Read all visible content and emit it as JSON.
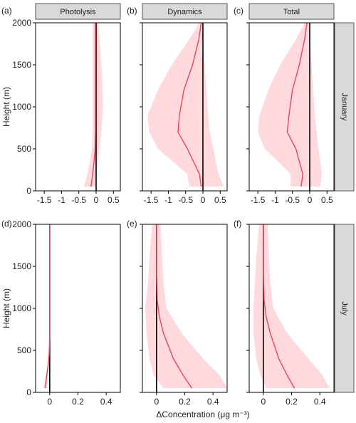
{
  "figure": {
    "ylabel": "Height (m)",
    "xlabel": "ΔConcentration (μg m⁻³)",
    "column_titles": [
      "Photolysis",
      "Dynamics",
      "Total"
    ],
    "row_titles": [
      "January",
      "July"
    ],
    "panel_labels": [
      "(a)",
      "(b)",
      "(c)",
      "(d)",
      "(e)",
      "(f)"
    ]
  },
  "colors": {
    "mean_line": "#e8475b",
    "band_fill": "#ffd9dd",
    "zero_line": "#000000",
    "strip_fill": "#d9d9d9",
    "frame": "#000000"
  },
  "chart_data": [
    {
      "type": "area",
      "panel": "(a)",
      "column": "Photolysis",
      "row": "January",
      "xlim": [
        -1.75,
        0.7
      ],
      "ylim": [
        0,
        2000
      ],
      "xticks": [
        -1.5,
        -1,
        -0.5,
        0,
        0.5
      ],
      "xticklabels": [
        "-1.5",
        "-1",
        "-0.5",
        "0",
        "0.5"
      ],
      "yticks": [
        0,
        500,
        1000,
        1500,
        2000
      ],
      "yticklabels": [
        "0",
        "500",
        "1000",
        "1500",
        "2000"
      ],
      "zero_line": 0,
      "series": [
        {
          "name": "",
          "kind": "band",
          "y": [
            50,
            200,
            350,
            500,
            700,
            1000,
            1300,
            1700,
            2000
          ],
          "lower": [
            -0.35,
            -0.25,
            -0.18,
            -0.12,
            -0.1,
            -0.1,
            -0.1,
            -0.1,
            -0.1
          ],
          "upper": [
            -0.02,
            0.0,
            0.05,
            0.1,
            0.15,
            0.2,
            0.18,
            0.12,
            0.05
          ]
        },
        {
          "name": "",
          "kind": "mean",
          "y": [
            50,
            200,
            350,
            500,
            700,
            1000,
            1300,
            1700,
            2000
          ],
          "x": [
            -0.15,
            -0.1,
            -0.06,
            -0.03,
            -0.02,
            -0.02,
            -0.02,
            -0.02,
            -0.02
          ]
        }
      ]
    },
    {
      "type": "area",
      "panel": "(b)",
      "column": "Dynamics",
      "row": "January",
      "xlim": [
        -1.75,
        0.7
      ],
      "ylim": [
        0,
        2000
      ],
      "xticks": [
        -1.5,
        -1,
        -0.5,
        0,
        0.5
      ],
      "xticklabels": [
        "-1.5",
        "-1",
        "-0.5",
        "0",
        "0.5"
      ],
      "yticks": [
        0,
        500,
        1000,
        1500,
        2000
      ],
      "yticklabels": [
        "",
        "",
        "",
        "",
        ""
      ],
      "zero_line": 0,
      "series": [
        {
          "name": "",
          "kind": "band",
          "y": [
            50,
            200,
            500,
            700,
            900,
            1200,
            1500,
            1800,
            2000
          ],
          "lower": [
            -0.4,
            -0.45,
            -1.3,
            -1.55,
            -1.6,
            -1.3,
            -0.9,
            -0.4,
            -0.1
          ],
          "upper": [
            0.6,
            0.45,
            0.3,
            0.2,
            0.15,
            0.1,
            0.05,
            0.0,
            0.0
          ]
        },
        {
          "name": "",
          "kind": "mean",
          "y": [
            50,
            200,
            500,
            700,
            900,
            1200,
            1500,
            1800,
            2000
          ],
          "x": [
            -0.05,
            -0.1,
            -0.45,
            -0.72,
            -0.68,
            -0.55,
            -0.3,
            -0.12,
            -0.05
          ]
        }
      ]
    },
    {
      "type": "area",
      "panel": "(c)",
      "column": "Total",
      "row": "January",
      "xlim": [
        -1.75,
        0.7
      ],
      "ylim": [
        0,
        2000
      ],
      "xticks": [
        -1.5,
        -1,
        -0.5,
        0,
        0.5
      ],
      "xticklabels": [
        "-1.5",
        "-1",
        "-0.5",
        "0",
        "0.5"
      ],
      "yticks": [
        0,
        500,
        1000,
        1500,
        2000
      ],
      "yticklabels": [
        "",
        "",
        "",
        "",
        ""
      ],
      "zero_line": 0,
      "series": [
        {
          "name": "",
          "kind": "band",
          "y": [
            50,
            200,
            500,
            700,
            900,
            1200,
            1500,
            1800,
            2000
          ],
          "lower": [
            -0.55,
            -0.55,
            -1.3,
            -1.5,
            -1.45,
            -1.2,
            -0.85,
            -0.4,
            -0.15
          ],
          "upper": [
            0.3,
            0.35,
            0.25,
            0.2,
            0.15,
            0.1,
            0.05,
            0.0,
            0.0
          ]
        },
        {
          "name": "",
          "kind": "mean",
          "y": [
            50,
            200,
            500,
            700,
            900,
            1200,
            1500,
            1800,
            2000
          ],
          "x": [
            -0.25,
            -0.2,
            -0.4,
            -0.65,
            -0.6,
            -0.5,
            -0.3,
            -0.15,
            -0.08
          ]
        }
      ]
    },
    {
      "type": "area",
      "panel": "(d)",
      "column": "Photolysis",
      "row": "July",
      "xlim": [
        -0.1,
        0.5
      ],
      "ylim": [
        0,
        2000
      ],
      "xticks": [
        0,
        0.2,
        0.4
      ],
      "xticklabels": [
        "0",
        "0.2",
        "0.4"
      ],
      "yticks": [
        0,
        500,
        1000,
        1500,
        2000
      ],
      "yticklabels": [
        "0",
        "500",
        "1000",
        "1500",
        "2000"
      ],
      "zero_line": 0,
      "series": [
        {
          "name": "",
          "kind": "band",
          "y": [
            50,
            150,
            300,
            450,
            700,
            1000,
            1500,
            2000
          ],
          "lower": [
            -0.045,
            -0.035,
            -0.02,
            -0.008,
            0,
            0,
            0,
            0
          ],
          "upper": [
            -0.02,
            -0.015,
            -0.006,
            0,
            0,
            0,
            0,
            0
          ]
        },
        {
          "name": "",
          "kind": "mean",
          "y": [
            50,
            150,
            300,
            450,
            700,
            1000,
            1500,
            2000
          ],
          "x": [
            -0.033,
            -0.025,
            -0.013,
            -0.004,
            0,
            0,
            0,
            0
          ]
        }
      ]
    },
    {
      "type": "area",
      "panel": "(e)",
      "column": "Dynamics",
      "row": "July",
      "xlim": [
        -0.1,
        0.5
      ],
      "ylim": [
        0,
        2000
      ],
      "xticks": [
        0,
        0.2,
        0.4
      ],
      "xticklabels": [
        "0",
        "0.2",
        "0.4"
      ],
      "yticks": [
        0,
        500,
        1000,
        1500,
        2000
      ],
      "yticklabels": [
        "",
        "",
        "",
        "",
        ""
      ],
      "zero_line": 0,
      "series": [
        {
          "name": "",
          "kind": "band",
          "y": [
            50,
            200,
            400,
            700,
            1000,
            1300,
            1600,
            2000
          ],
          "lower": [
            0.05,
            -0.02,
            -0.05,
            -0.07,
            -0.08,
            -0.06,
            -0.05,
            -0.03
          ],
          "upper": [
            0.5,
            0.45,
            0.33,
            0.18,
            0.07,
            0.05,
            0.04,
            0.03
          ]
        },
        {
          "name": "",
          "kind": "mean",
          "y": [
            50,
            200,
            400,
            700,
            900,
            1100,
            1400,
            2000
          ],
          "x": [
            0.25,
            0.19,
            0.12,
            0.05,
            0.02,
            0.005,
            0,
            0
          ]
        }
      ]
    },
    {
      "type": "area",
      "panel": "(f)",
      "column": "Total",
      "row": "July",
      "xlim": [
        -0.1,
        0.5
      ],
      "ylim": [
        0,
        2000
      ],
      "xticks": [
        0,
        0.2,
        0.4
      ],
      "xticklabels": [
        "0",
        "0.2",
        "0.4"
      ],
      "yticks": [
        0,
        500,
        1000,
        1500,
        2000
      ],
      "yticklabels": [
        "",
        "",
        "",
        "",
        ""
      ],
      "zero_line": 0,
      "series": [
        {
          "name": "",
          "kind": "band",
          "y": [
            50,
            200,
            400,
            700,
            1000,
            1300,
            1600,
            2000
          ],
          "lower": [
            0.02,
            -0.02,
            -0.05,
            -0.07,
            -0.07,
            -0.06,
            -0.05,
            -0.03
          ],
          "upper": [
            0.47,
            0.42,
            0.32,
            0.17,
            0.07,
            0.05,
            0.04,
            0.03
          ]
        },
        {
          "name": "",
          "kind": "mean",
          "y": [
            50,
            200,
            400,
            700,
            900,
            1100,
            1400,
            2000
          ],
          "x": [
            0.22,
            0.17,
            0.11,
            0.05,
            0.02,
            0.005,
            0,
            0
          ]
        }
      ]
    }
  ]
}
